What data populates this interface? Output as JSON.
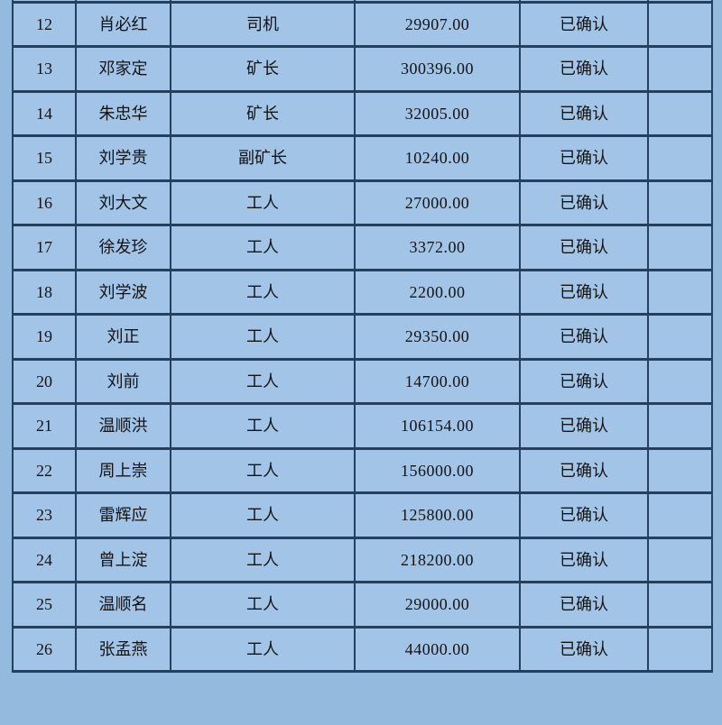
{
  "colors": {
    "page_background": "#94badd",
    "cell_background": "#a2c5e7",
    "grid_border": "#24405f",
    "text": "#131313"
  },
  "table": {
    "status_confirmed_label": "已确认",
    "rows": [
      {
        "index": "12",
        "name": "肖必红",
        "position": "司机",
        "amount": "29907.00",
        "status": "已确认"
      },
      {
        "index": "13",
        "name": "邓家定",
        "position": "矿长",
        "amount": "300396.00",
        "status": "已确认"
      },
      {
        "index": "14",
        "name": "朱忠华",
        "position": "矿长",
        "amount": "32005.00",
        "status": "已确认"
      },
      {
        "index": "15",
        "name": "刘学贵",
        "position": "副矿长",
        "amount": "10240.00",
        "status": "已确认"
      },
      {
        "index": "16",
        "name": "刘大文",
        "position": "工人",
        "amount": "27000.00",
        "status": "已确认"
      },
      {
        "index": "17",
        "name": "徐发珍",
        "position": "工人",
        "amount": "3372.00",
        "status": "已确认"
      },
      {
        "index": "18",
        "name": "刘学波",
        "position": "工人",
        "amount": "2200.00",
        "status": "已确认"
      },
      {
        "index": "19",
        "name": "刘正",
        "position": "工人",
        "amount": "29350.00",
        "status": "已确认"
      },
      {
        "index": "20",
        "name": "刘前",
        "position": "工人",
        "amount": "14700.00",
        "status": "已确认"
      },
      {
        "index": "21",
        "name": "温顺洪",
        "position": "工人",
        "amount": "106154.00",
        "status": "已确认"
      },
      {
        "index": "22",
        "name": "周上崇",
        "position": "工人",
        "amount": "156000.00",
        "status": "已确认"
      },
      {
        "index": "23",
        "name": "雷辉应",
        "position": "工人",
        "amount": "125800.00",
        "status": "已确认"
      },
      {
        "index": "24",
        "name": "曾上淀",
        "position": "工人",
        "amount": "218200.00",
        "status": "已确认"
      },
      {
        "index": "25",
        "name": "温顺名",
        "position": "工人",
        "amount": "29000.00",
        "status": "已确认"
      },
      {
        "index": "26",
        "name": "张孟燕",
        "position": "工人",
        "amount": "44000.00",
        "status": "已确认"
      }
    ]
  }
}
